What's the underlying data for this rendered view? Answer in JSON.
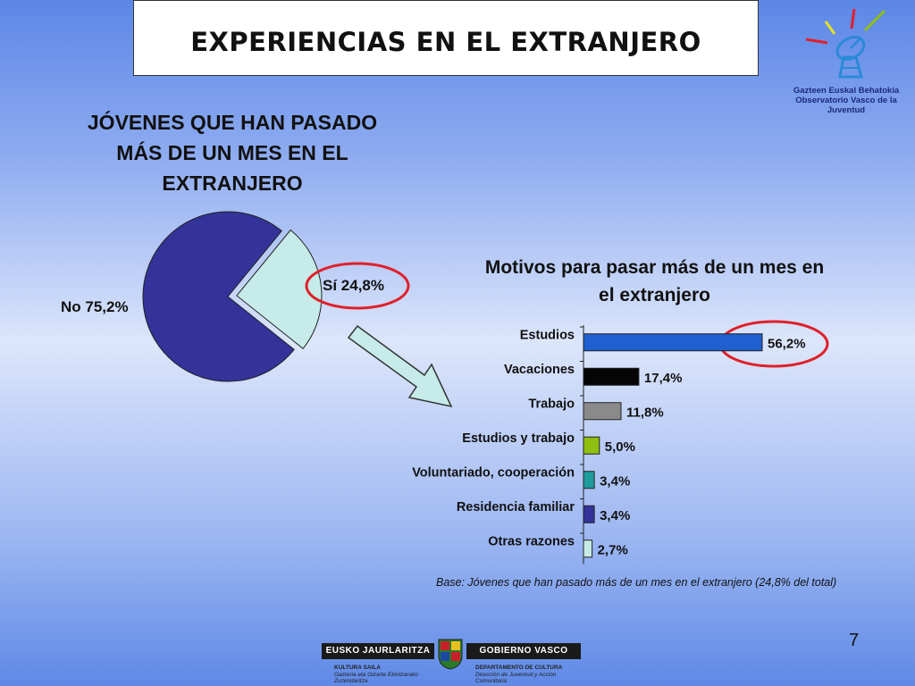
{
  "title": "EXPERIENCIAS EN EL EXTRANJERO",
  "logo": {
    "line1": "Gazteen Euskal Behatokia",
    "line2": "Observatorio Vasco de la Juventud"
  },
  "page_number": "7",
  "base_note": "Base: Jóvenes que han pasado más de un  mes en el extranjero (24,8% del total)",
  "footer": {
    "left_bar": "EUSKO JAURLARITZA",
    "right_bar": "GOBIERNO VASCO",
    "left_dept": "KULTURA SAILA",
    "left_sub1": "Gazteria eta Gizarte Ekintzarako",
    "left_sub2": "Zuzendaritza",
    "right_dept": "DEPARTAMENTO DE CULTURA",
    "right_sub1": "Dirección de Juventud y Acción",
    "right_sub2": "Comunitaria"
  },
  "colors": {
    "pie_no": "#33339a",
    "pie_si": "#c6ebe8",
    "highlight": "#e0202a",
    "arrow_fill": "#c6ebe8"
  },
  "chart_data": [
    {
      "type": "pie",
      "title_lines": [
        "JÓVENES QUE HAN PASADO",
        "MÁS DE UN MES EN EL",
        "EXTRANJERO"
      ],
      "slices": [
        {
          "name": "No",
          "value": 75.2,
          "label": "No 75,2%",
          "color": "#33339a"
        },
        {
          "name": "Sí",
          "value": 24.8,
          "label": "Sí 24,8%",
          "color": "#c6ebe8",
          "exploded": true,
          "highlighted": true
        }
      ]
    },
    {
      "type": "bar",
      "orientation": "horizontal",
      "title_lines": [
        "Motivos para pasar más de un mes en",
        "el extranjero"
      ],
      "categories": [
        "Estudios",
        "Vacaciones",
        "Trabajo",
        "Estudios y trabajo",
        "Voluntariado, cooperación",
        "Residencia familiar",
        "Otras razones"
      ],
      "values": [
        56.2,
        17.4,
        11.8,
        5.0,
        3.4,
        3.4,
        2.7
      ],
      "value_labels": [
        "56,2%",
        "17,4%",
        "11,8%",
        "5,0%",
        "3,4%",
        "3,4%",
        "2,7%"
      ],
      "colors": [
        "#1f5fcf",
        "#050505",
        "#8a8a8a",
        "#8fbf10",
        "#1f9c9c",
        "#33339a",
        "#c6ebe8"
      ],
      "highlighted_index": 0,
      "xlim": [
        0,
        60
      ]
    }
  ]
}
